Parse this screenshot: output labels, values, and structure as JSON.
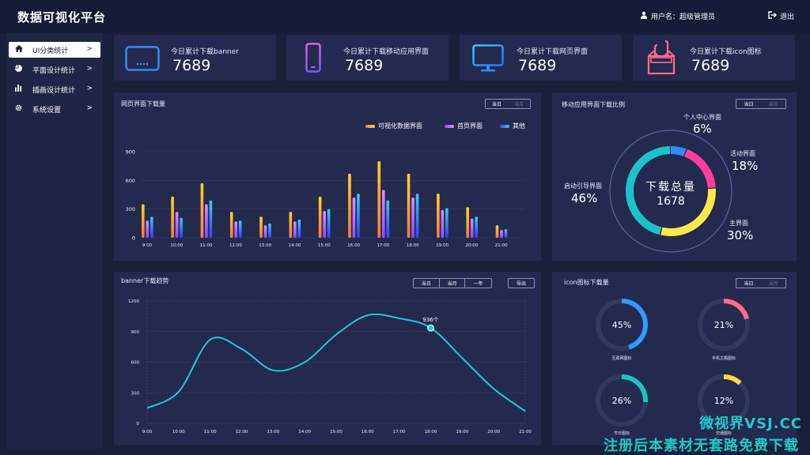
{
  "header": {
    "title": "数据可视化平台",
    "user_label": "用户名：超级管理员",
    "logout_label": "退出"
  },
  "sidebar": {
    "items": [
      {
        "label": "UI分类统计",
        "icon": "home-icon",
        "active": true
      },
      {
        "label": "平面设计统计",
        "icon": "pie-icon",
        "active": false
      },
      {
        "label": "插画设计统计",
        "icon": "bar-chart-icon",
        "active": false
      },
      {
        "label": "系统设置",
        "icon": "gear-icon",
        "active": false
      }
    ]
  },
  "stats": [
    {
      "title": "今日累计下载banner",
      "value": "7689",
      "icon": "banner-screen-icon",
      "color": "#2f8cff"
    },
    {
      "title": "今日累计下载移动应用界面",
      "value": "7689",
      "icon": "mobile-phone-icon",
      "color": "#b85cf5"
    },
    {
      "title": "今日累计下载网页界面",
      "value": "7689",
      "icon": "monitor-icon",
      "color": "#2f9bff"
    },
    {
      "title": "今日累计下载icon图标",
      "value": "7689",
      "icon": "gift-box-icon",
      "color": "#ff6b8a"
    }
  ],
  "web_panel": {
    "title": "网页界面下载量",
    "tabs": [
      "当日",
      "当月"
    ],
    "legend": [
      "可视化数据界面",
      "首页界面",
      "其他"
    ]
  },
  "mobile_panel": {
    "title": "移动应用界面下载比例",
    "tabs": [
      "当日",
      "当月"
    ],
    "center_title": "下载总量",
    "center_value": "1678",
    "segments": [
      {
        "label": "个人中心界面",
        "pct": "6%",
        "value": 6,
        "color": "#2f8cff"
      },
      {
        "label": "活动界面",
        "pct": "18%",
        "value": 18,
        "color": "#ff3d9a"
      },
      {
        "label": "主界面",
        "pct": "30%",
        "value": 30,
        "color": "#ffe94a"
      },
      {
        "label": "启动引导界面",
        "pct": "46%",
        "value": 46,
        "color": "#19c3c9"
      }
    ]
  },
  "banner_panel": {
    "title": "banner下载趋势",
    "tabs": [
      "当日",
      "当月",
      "一年"
    ],
    "export_label": "导出",
    "marker_label": "936个"
  },
  "icon_panel": {
    "title": "icon图标下载量",
    "tabs": [
      "当日",
      "当月"
    ],
    "gauges": [
      {
        "pct": "45%",
        "value": 45,
        "label": "互联网图标",
        "color": "#2f9bff"
      },
      {
        "pct": "21%",
        "value": 21,
        "label": "手机主题图标",
        "color": "#ff6b8a"
      },
      {
        "pct": "26%",
        "value": 26,
        "label": "节日图标",
        "color": "#19c3c9"
      },
      {
        "pct": "12%",
        "value": 12,
        "label": "交通图标",
        "color": "#ffd94a"
      }
    ]
  },
  "watermark": {
    "line1": "微视界VSJ.CC",
    "line2": "注册后本素材无套路免费下载"
  },
  "chart_data": [
    {
      "type": "bar",
      "title": "网页界面下载量",
      "categories": [
        "9:00",
        "10:00",
        "11:00",
        "12:00",
        "13:00",
        "14:00",
        "15:00",
        "16:00",
        "17:00",
        "18:00",
        "19:00",
        "20:00",
        "21:00"
      ],
      "yticks": [
        "900",
        "600",
        "300",
        "0"
      ],
      "ylim": [
        0,
        900
      ],
      "series": [
        {
          "name": "可视化数据界面",
          "values": [
            350,
            430,
            570,
            270,
            220,
            270,
            430,
            670,
            800,
            670,
            460,
            320,
            130
          ],
          "color_top": "#ffd22e",
          "color_bottom": "#ff7a3d"
        },
        {
          "name": "首页界面",
          "values": [
            180,
            270,
            350,
            170,
            130,
            170,
            280,
            420,
            500,
            420,
            290,
            200,
            80
          ],
          "color_top": "#e48cff",
          "color_bottom": "#8b4dff"
        },
        {
          "name": "其他",
          "values": [
            220,
            210,
            390,
            180,
            150,
            190,
            300,
            460,
            390,
            460,
            310,
            220,
            90
          ],
          "color_top": "#2fd2ff",
          "color_bottom": "#3b3cff"
        }
      ]
    },
    {
      "type": "pie",
      "title": "移动应用界面下载比例",
      "categories": [
        "个人中心界面",
        "活动界面",
        "主界面",
        "启动引导界面"
      ],
      "values": [
        6,
        18,
        30,
        46
      ]
    },
    {
      "type": "line",
      "title": "banner下载趋势",
      "x": [
        "9:00",
        "10:00",
        "11:00",
        "12:00",
        "13:00",
        "14:00",
        "15:00",
        "16:00",
        "17:00",
        "18:00",
        "19:00",
        "20:00",
        "21:00"
      ],
      "yticks": [
        "1200",
        "900",
        "600",
        "300",
        "0"
      ],
      "ylim": [
        0,
        1200
      ],
      "series": [
        {
          "name": "",
          "values": [
            150,
            310,
            820,
            730,
            520,
            600,
            870,
            1060,
            1030,
            936,
            640,
            340,
            120
          ]
        }
      ]
    }
  ]
}
